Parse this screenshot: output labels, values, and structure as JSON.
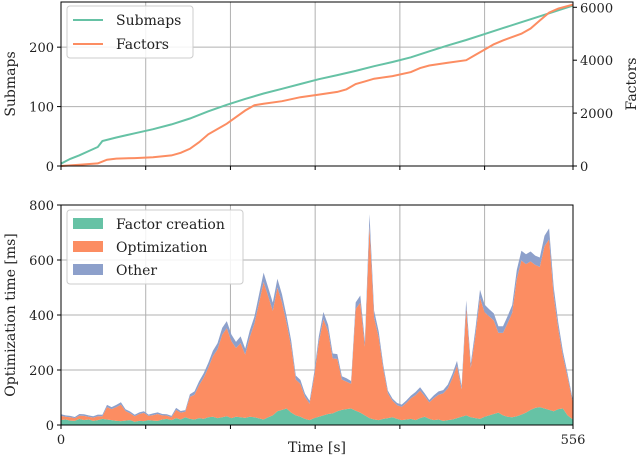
{
  "colors": {
    "submaps": "#66c2a5",
    "factors": "#fc8d62",
    "factor_creation": "#66c2a5",
    "optimization": "#fc8d62",
    "other": "#8da0cb"
  },
  "chart_data": [
    {
      "type": "line",
      "ylabel": "Submaps",
      "y2label": "Factors",
      "xlim": [
        0,
        556
      ],
      "ylim": [
        0,
        276
      ],
      "y2lim": [
        0,
        6200
      ],
      "yticks": [
        0,
        100,
        200
      ],
      "y2ticks": [
        0,
        2000,
        4000,
        6000
      ],
      "legend_position": "top-left",
      "grid": true,
      "series": [
        {
          "name": "Submaps",
          "axis": "left",
          "x": [
            0,
            10,
            20,
            30,
            40,
            45,
            60,
            80,
            100,
            120,
            140,
            160,
            180,
            200,
            220,
            240,
            260,
            280,
            300,
            320,
            340,
            360,
            380,
            400,
            420,
            440,
            460,
            480,
            500,
            520,
            540,
            556
          ],
          "y": [
            4,
            12,
            18,
            25,
            32,
            42,
            48,
            55,
            62,
            70,
            80,
            92,
            103,
            113,
            122,
            130,
            138,
            146,
            153,
            160,
            168,
            175,
            183,
            193,
            203,
            212,
            222,
            232,
            242,
            252,
            262,
            270
          ]
        },
        {
          "name": "Factors",
          "axis": "right",
          "x": [
            0,
            20,
            40,
            50,
            60,
            80,
            100,
            120,
            130,
            140,
            150,
            160,
            180,
            200,
            210,
            220,
            240,
            260,
            280,
            300,
            310,
            320,
            330,
            340,
            360,
            380,
            390,
            400,
            420,
            440,
            450,
            460,
            470,
            480,
            500,
            510,
            520,
            530,
            540,
            556
          ],
          "y": [
            0,
            50,
            100,
            240,
            280,
            300,
            330,
            400,
            500,
            650,
            900,
            1200,
            1600,
            2100,
            2300,
            2350,
            2450,
            2600,
            2700,
            2800,
            2900,
            3100,
            3200,
            3300,
            3400,
            3550,
            3700,
            3800,
            3900,
            4000,
            4200,
            4400,
            4600,
            4750,
            5000,
            5200,
            5500,
            5800,
            5950,
            6100
          ]
        }
      ]
    },
    {
      "type": "area",
      "stacked": true,
      "xlabel": "Time [s]",
      "ylabel": "Optimization time [ms]",
      "xlim": [
        0,
        556
      ],
      "ylim": [
        0,
        800
      ],
      "xticks": [
        0,
        556
      ],
      "yticks": [
        0,
        200,
        400,
        600,
        800
      ],
      "legend_position": "top-left",
      "grid": true,
      "x": [
        0,
        5,
        10,
        15,
        20,
        25,
        30,
        35,
        40,
        45,
        50,
        55,
        60,
        65,
        70,
        75,
        80,
        85,
        90,
        95,
        100,
        105,
        110,
        115,
        120,
        125,
        130,
        135,
        140,
        145,
        150,
        155,
        160,
        165,
        170,
        175,
        180,
        185,
        190,
        195,
        200,
        205,
        210,
        215,
        220,
        225,
        230,
        235,
        240,
        245,
        250,
        255,
        260,
        265,
        270,
        275,
        280,
        285,
        290,
        295,
        300,
        305,
        310,
        315,
        320,
        325,
        330,
        335,
        340,
        345,
        350,
        355,
        360,
        365,
        370,
        375,
        380,
        385,
        390,
        395,
        400,
        405,
        410,
        415,
        420,
        425,
        430,
        435,
        440,
        445,
        450,
        455,
        460,
        465,
        470,
        475,
        480,
        485,
        490,
        495,
        500,
        505,
        510,
        515,
        520,
        525,
        530,
        535,
        540,
        545,
        550,
        556
      ],
      "series": [
        {
          "name": "Factor creation",
          "values": [
            18,
            20,
            16,
            15,
            22,
            18,
            20,
            15,
            18,
            22,
            20,
            18,
            15,
            14,
            16,
            18,
            12,
            15,
            14,
            18,
            16,
            15,
            20,
            22,
            18,
            25,
            20,
            28,
            22,
            20,
            25,
            22,
            28,
            30,
            25,
            28,
            32,
            25,
            30,
            28,
            26,
            30,
            28,
            24,
            20,
            28,
            35,
            50,
            55,
            60,
            45,
            35,
            30,
            22,
            18,
            25,
            30,
            35,
            40,
            42,
            50,
            55,
            58,
            60,
            52,
            45,
            35,
            25,
            20,
            18,
            22,
            25,
            28,
            22,
            18,
            20,
            22,
            18,
            25,
            30,
            22,
            18,
            20,
            15,
            18,
            20,
            25,
            30,
            35,
            28,
            25,
            22,
            30,
            35,
            40,
            45,
            35,
            30,
            28,
            32,
            38,
            45,
            55,
            62,
            65,
            60,
            55,
            50,
            58,
            60,
            35,
            20
          ]
        },
        {
          "name": "Optimization",
          "values": [
            15,
            10,
            12,
            10,
            12,
            15,
            10,
            12,
            14,
            10,
            45,
            40,
            50,
            60,
            35,
            25,
            20,
            25,
            30,
            15,
            20,
            25,
            15,
            12,
            10,
            30,
            25,
            20,
            80,
            90,
            120,
            150,
            180,
            220,
            250,
            300,
            320,
            280,
            250,
            270,
            230,
            290,
            340,
            420,
            500,
            440,
            380,
            450,
            390,
            310,
            240,
            130,
            120,
            80,
            60,
            150,
            270,
            350,
            300,
            200,
            190,
            110,
            100,
            90,
            370,
            400,
            250,
            700,
            370,
            300,
            180,
            90,
            60,
            50,
            48,
            60,
            75,
            90,
            100,
            75,
            60,
            80,
            90,
            100,
            115,
            150,
            190,
            100,
            390,
            180,
            300,
            440,
            380,
            360,
            340,
            290,
            300,
            340,
            380,
            500,
            560,
            540,
            540,
            520,
            510,
            590,
            620,
            420,
            290,
            190,
            140,
            60
          ]
        },
        {
          "name": "Other",
          "values": [
            6,
            5,
            5,
            4,
            6,
            6,
            5,
            5,
            6,
            5,
            8,
            7,
            8,
            9,
            6,
            6,
            5,
            6,
            6,
            5,
            6,
            6,
            5,
            5,
            5,
            7,
            6,
            6,
            10,
            12,
            14,
            16,
            18,
            20,
            22,
            25,
            26,
            24,
            22,
            24,
            22,
            24,
            26,
            30,
            34,
            32,
            30,
            32,
            30,
            26,
            22,
            15,
            14,
            12,
            10,
            16,
            22,
            26,
            24,
            18,
            18,
            12,
            12,
            10,
            24,
            26,
            20,
            42,
            26,
            22,
            16,
            10,
            8,
            8,
            8,
            9,
            10,
            12,
            12,
            10,
            9,
            10,
            12,
            12,
            14,
            16,
            18,
            12,
            28,
            16,
            24,
            30,
            28,
            26,
            26,
            24,
            24,
            26,
            28,
            32,
            36,
            36,
            36,
            34,
            34,
            38,
            40,
            32,
            24,
            18,
            14,
            8
          ]
        }
      ]
    }
  ]
}
